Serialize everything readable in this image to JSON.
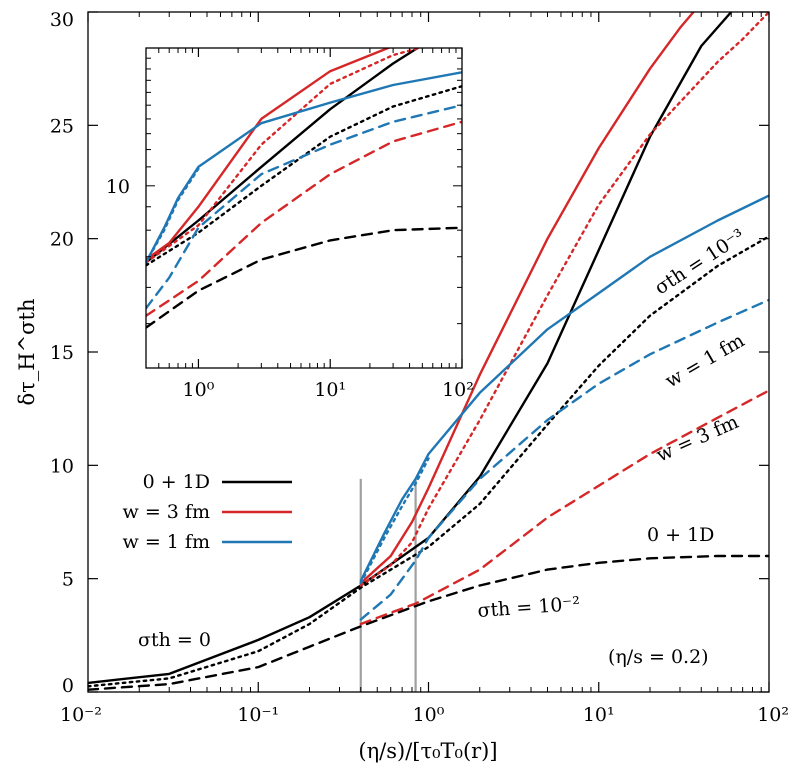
{
  "chart_data": [
    {
      "type": "line",
      "xscale": "log",
      "xlim": [
        0.01,
        100
      ],
      "ylim": [
        0,
        30
      ],
      "xlabel": "(η/s)/[τ₀T₀(r)]",
      "ylabel": "δτ_H^σth",
      "x_ticks": [
        0.01,
        0.1,
        1,
        10,
        100
      ],
      "x_tick_labels": [
        "10⁻²",
        "10⁻¹",
        "10⁰",
        "10¹",
        "10²"
      ],
      "y_ticks": [
        0,
        5,
        10,
        15,
        20,
        25,
        30
      ],
      "y_tick_labels": [
        "0",
        "5",
        "10",
        "15",
        "20",
        "25",
        "30"
      ],
      "grid": false,
      "legend_position": "left",
      "legend": [
        {
          "label": "0 + 1D",
          "color": "#000000"
        },
        {
          "label": "w = 3 fm",
          "color": "#d62728"
        },
        {
          "label": "w = 1 fm",
          "color": "#1f77b4"
        }
      ],
      "vertical_markers": [
        0.4,
        0.84
      ],
      "annotations": [
        "σth = 0",
        "σth = 10⁻²",
        "σth = 10⁻³",
        "w = 1 fm",
        "w = 3 fm",
        "0 + 1D",
        "(η/s = 0.2)"
      ],
      "series": [
        {
          "name": "0 + 1D",
          "color": "#000000",
          "style": "solid",
          "points": [
            [
              0.01,
              0.4
            ],
            [
              0.03,
              0.8
            ],
            [
              0.1,
              2.3
            ],
            [
              0.2,
              3.3
            ],
            [
              0.4,
              4.7
            ],
            [
              1,
              6.8
            ],
            [
              2,
              9.5
            ],
            [
              5,
              14.5
            ],
            [
              10,
              19.5
            ],
            [
              20,
              24.5
            ],
            [
              40,
              28.5
            ],
            [
              60,
              30
            ]
          ]
        },
        {
          "name": "0 + 1D",
          "color": "#000000",
          "style": "dotted",
          "points": [
            [
              0.01,
              0.25
            ],
            [
              0.03,
              0.6
            ],
            [
              0.1,
              1.8
            ],
            [
              0.2,
              3.0
            ],
            [
              0.4,
              4.6
            ],
            [
              1,
              6.4
            ],
            [
              2,
              8.3
            ],
            [
              5,
              11.8
            ],
            [
              10,
              14.4
            ],
            [
              20,
              16.6
            ],
            [
              50,
              18.8
            ],
            [
              100,
              20.1
            ]
          ]
        },
        {
          "name": "0 + 1D",
          "color": "#000000",
          "style": "dashed",
          "points": [
            [
              0.01,
              0.1
            ],
            [
              0.03,
              0.35
            ],
            [
              0.1,
              1.1
            ],
            [
              0.2,
              2.0
            ],
            [
              0.4,
              2.9
            ],
            [
              1,
              4.0
            ],
            [
              2,
              4.7
            ],
            [
              5,
              5.4
            ],
            [
              10,
              5.7
            ],
            [
              20,
              5.9
            ],
            [
              50,
              6.0
            ],
            [
              100,
              6.0
            ]
          ]
        },
        {
          "name": "w = 3 fm",
          "color": "#d62728",
          "style": "solid",
          "points": [
            [
              0.4,
              4.8
            ],
            [
              0.6,
              6.0
            ],
            [
              0.8,
              7.5
            ],
            [
              1,
              9.0
            ],
            [
              2,
              14.0
            ],
            [
              5,
              20.0
            ],
            [
              10,
              24.0
            ],
            [
              20,
              27.5
            ],
            [
              30,
              29.3
            ],
            [
              36,
              30
            ]
          ]
        },
        {
          "name": "w = 3 fm",
          "color": "#d62728",
          "style": "dotted",
          "points": [
            [
              0.4,
              4.7
            ],
            [
              0.6,
              5.6
            ],
            [
              0.8,
              6.6
            ],
            [
              1,
              8.1
            ],
            [
              2,
              12.0
            ],
            [
              5,
              17.5
            ],
            [
              10,
              21.5
            ],
            [
              20,
              24.6
            ],
            [
              50,
              27.8
            ],
            [
              70,
              28.8
            ],
            [
              100,
              30
            ]
          ]
        },
        {
          "name": "w = 3 fm",
          "color": "#d62728",
          "style": "dashed",
          "points": [
            [
              0.4,
              3.0
            ],
            [
              0.6,
              3.5
            ],
            [
              0.84,
              3.9
            ],
            [
              1,
              4.2
            ],
            [
              2,
              5.4
            ],
            [
              5,
              7.7
            ],
            [
              10,
              9.1
            ],
            [
              20,
              10.5
            ],
            [
              50,
              12.1
            ],
            [
              100,
              13.3
            ]
          ]
        },
        {
          "name": "w = 1 fm",
          "color": "#1f77b4",
          "style": "solid",
          "points": [
            [
              0.4,
              4.9
            ],
            [
              0.55,
              7.0
            ],
            [
              0.7,
              8.5
            ],
            [
              0.84,
              9.4
            ],
            [
              1,
              10.5
            ],
            [
              2,
              13.2
            ],
            [
              5,
              16.0
            ],
            [
              10,
              17.6
            ],
            [
              20,
              19.2
            ],
            [
              50,
              20.8
            ],
            [
              100,
              21.9
            ]
          ]
        },
        {
          "name": "w = 1 fm",
          "color": "#1f77b4",
          "style": "dotted",
          "points": [
            [
              0.4,
              4.8
            ],
            [
              0.55,
              6.8
            ],
            [
              0.7,
              8.2
            ],
            [
              0.84,
              9.2
            ],
            [
              1,
              10.3
            ]
          ]
        },
        {
          "name": "w = 1 fm",
          "color": "#1f77b4",
          "style": "dashed",
          "points": [
            [
              0.4,
              3.2
            ],
            [
              0.6,
              4.3
            ],
            [
              0.84,
              5.8
            ],
            [
              1,
              6.8
            ],
            [
              2,
              9.4
            ],
            [
              5,
              12.0
            ],
            [
              10,
              13.6
            ],
            [
              20,
              14.9
            ],
            [
              50,
              16.3
            ],
            [
              100,
              17.3
            ]
          ]
        }
      ]
    },
    {
      "type": "line",
      "xscale": "log",
      "yscale": "log",
      "inset": true,
      "xlim": [
        0.4,
        100
      ],
      "ylim": [
        4,
        20
      ],
      "x_ticks": [
        1,
        10,
        100
      ],
      "x_tick_labels": [
        "10⁰",
        "10¹",
        "10²"
      ],
      "y_ticks": [
        10
      ],
      "y_tick_labels": [
        "10"
      ],
      "series": [
        {
          "name": "0 + 1D",
          "color": "#000000",
          "style": "solid",
          "points": [
            [
              0.4,
              6.8
            ],
            [
              1,
              8.4
            ],
            [
              3,
              11.0
            ],
            [
              10,
              14.7
            ],
            [
              30,
              18.5
            ],
            [
              60,
              21
            ]
          ]
        },
        {
          "name": "0 + 1D",
          "color": "#000000",
          "style": "dotted",
          "points": [
            [
              0.4,
              6.7
            ],
            [
              1,
              7.9
            ],
            [
              3,
              10.0
            ],
            [
              10,
              12.8
            ],
            [
              30,
              14.9
            ],
            [
              100,
              16.5
            ]
          ]
        },
        {
          "name": "0 + 1D",
          "color": "#000000",
          "style": "dashed",
          "points": [
            [
              0.4,
              4.9
            ],
            [
              1,
              5.9
            ],
            [
              3,
              6.9
            ],
            [
              10,
              7.6
            ],
            [
              30,
              8.0
            ],
            [
              100,
              8.1
            ]
          ]
        },
        {
          "name": "w = 3 fm",
          "color": "#d62728",
          "style": "solid",
          "points": [
            [
              0.4,
              6.9
            ],
            [
              0.6,
              7.5
            ],
            [
              1,
              9.0
            ],
            [
              3,
              14.0
            ],
            [
              10,
              17.8
            ],
            [
              30,
              20.2
            ],
            [
              50,
              21
            ]
          ]
        },
        {
          "name": "w = 3 fm",
          "color": "#d62728",
          "style": "dotted",
          "points": [
            [
              0.4,
              6.8
            ],
            [
              1,
              8.2
            ],
            [
              3,
              12.3
            ],
            [
              10,
              16.7
            ],
            [
              30,
              19.3
            ],
            [
              100,
              21.2
            ]
          ]
        },
        {
          "name": "w = 3 fm",
          "color": "#d62728",
          "style": "dashed",
          "points": [
            [
              0.4,
              5.2
            ],
            [
              1,
              6.2
            ],
            [
              3,
              8.3
            ],
            [
              10,
              10.6
            ],
            [
              30,
              12.5
            ],
            [
              100,
              13.8
            ]
          ]
        },
        {
          "name": "w = 1 fm",
          "color": "#1f77b4",
          "style": "solid",
          "points": [
            [
              0.4,
              6.8
            ],
            [
              0.55,
              8.1
            ],
            [
              0.7,
              9.4
            ],
            [
              1,
              11.0
            ],
            [
              3,
              13.7
            ],
            [
              10,
              15.2
            ],
            [
              30,
              16.6
            ],
            [
              100,
              17.7
            ]
          ]
        },
        {
          "name": "w = 1 fm",
          "color": "#1f77b4",
          "style": "dotted",
          "points": [
            [
              0.4,
              6.8
            ],
            [
              0.55,
              8.0
            ],
            [
              0.7,
              9.3
            ],
            [
              1,
              10.9
            ]
          ]
        },
        {
          "name": "w = 1 fm",
          "color": "#1f77b4",
          "style": "dashed",
          "points": [
            [
              0.4,
              5.4
            ],
            [
              0.6,
              6.3
            ],
            [
              1,
              8.1
            ],
            [
              3,
              10.6
            ],
            [
              10,
              12.3
            ],
            [
              30,
              13.8
            ],
            [
              100,
              15.0
            ]
          ]
        }
      ]
    }
  ]
}
